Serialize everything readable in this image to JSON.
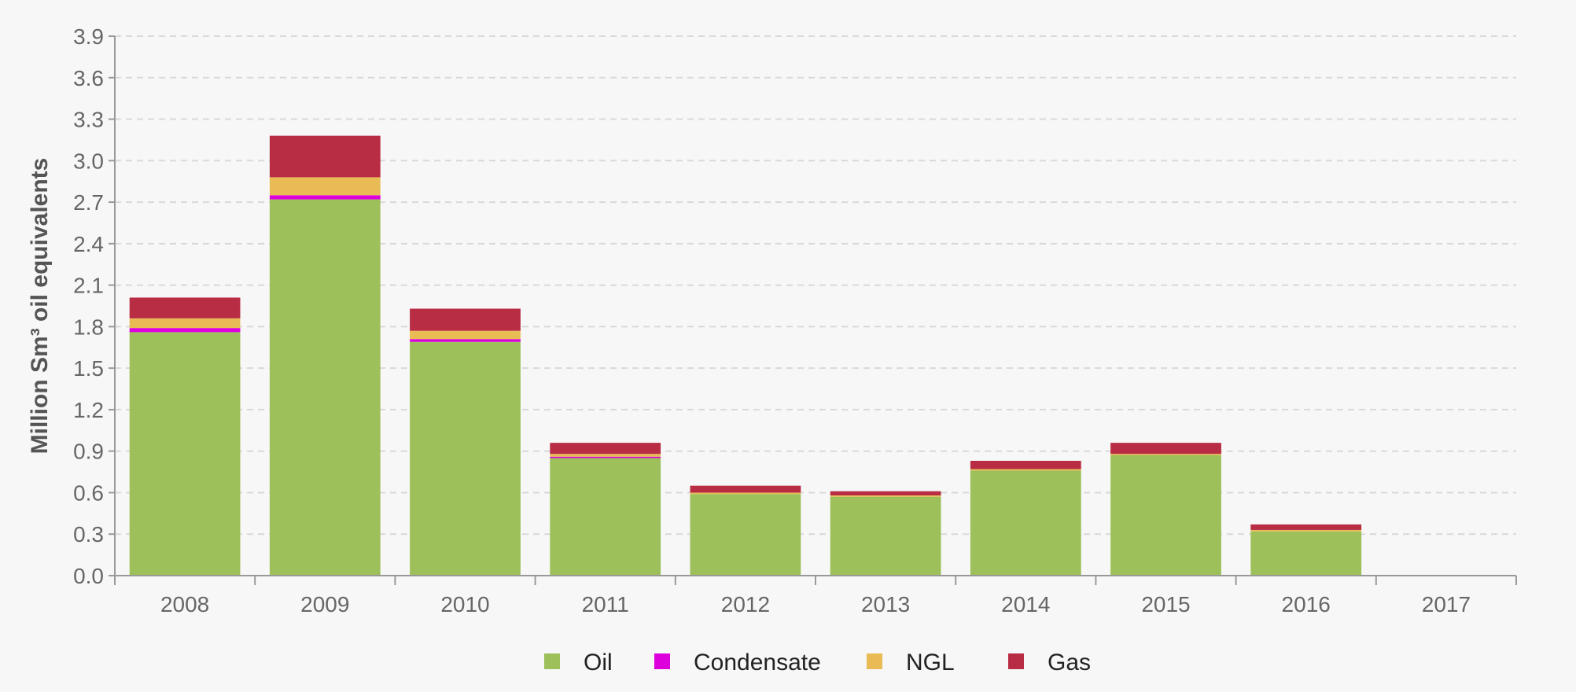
{
  "chart_data": {
    "type": "bar",
    "stacked": true,
    "categories": [
      "2008",
      "2009",
      "2010",
      "2011",
      "2012",
      "2013",
      "2014",
      "2015",
      "2016",
      "2017"
    ],
    "series": [
      {
        "name": "Oil",
        "color": "#9dc05a",
        "values": [
          1.76,
          2.72,
          1.69,
          0.85,
          0.59,
          0.57,
          0.76,
          0.87,
          0.32,
          0
        ]
      },
      {
        "name": "Condensate",
        "color": "#dd00dd",
        "values": [
          0.03,
          0.03,
          0.02,
          0.01,
          0,
          0,
          0,
          0,
          0,
          0
        ]
      },
      {
        "name": "NGL",
        "color": "#e8bb55",
        "values": [
          0.07,
          0.13,
          0.06,
          0.02,
          0.01,
          0.01,
          0.01,
          0.01,
          0.01,
          0
        ]
      },
      {
        "name": "Gas",
        "color": "#b82c44",
        "values": [
          0.15,
          0.3,
          0.16,
          0.08,
          0.05,
          0.03,
          0.06,
          0.08,
          0.04,
          0
        ]
      }
    ],
    "ylabel": "Million Sm³ oil equivalents",
    "xlabel": "",
    "ylim": [
      0,
      3.9
    ],
    "yticks": [
      "0.0",
      "0.3",
      "0.6",
      "0.9",
      "1.2",
      "1.5",
      "1.8",
      "2.1",
      "2.4",
      "2.7",
      "3.0",
      "3.3",
      "3.6",
      "3.9"
    ],
    "grid": "dashed horizontal",
    "legend_position": "bottom-center"
  }
}
